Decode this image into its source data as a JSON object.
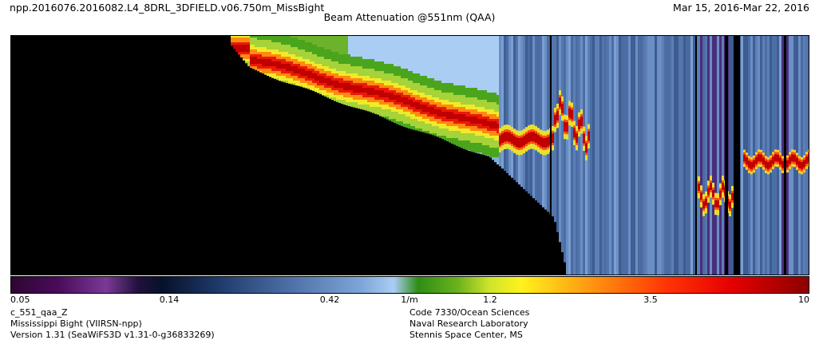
{
  "header": {
    "product_name": "npp.2016076.2016082.L4_8DRL_3DFIELD.v06.750m_MissBight",
    "date_range": "Mar 15, 2016-Mar 22, 2016",
    "title": "Beam Attenuation @551nm (QAA)"
  },
  "colorbar": {
    "ticks": [
      "0.05",
      "0.14",
      "0.42",
      "1/m",
      "1.2",
      "3.5",
      "10"
    ],
    "log_scale": true,
    "range": [
      0.05,
      10
    ],
    "unit": "1/m"
  },
  "footer": {
    "left": [
      "c_551_qaa_Z",
      "Mississippi Bight (VIIRSN-npp)",
      "Version 1.31 (SeaWiFS3D v1.31-0-g36833269)"
    ],
    "right": [
      "Code 7330/Ocean Sciences",
      "Naval Research Laboratory",
      "Stennis Space Center, MS"
    ]
  },
  "colors": {
    "no_data": "#000000",
    "frame": "#000000",
    "background": "#ffffff"
  }
}
